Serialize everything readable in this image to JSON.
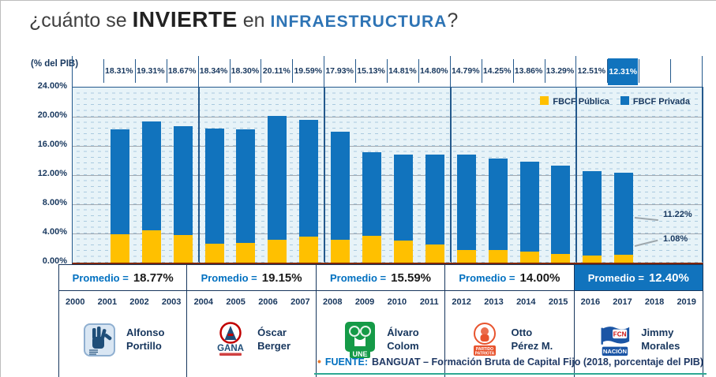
{
  "title": {
    "part1": "¿cuánto se ",
    "invierte": "INVIERTE",
    "part2": " en ",
    "infraestructura": "INFRAESTRUCTURA",
    "qmark": "?"
  },
  "axis": {
    "unit": "(% del PIB)",
    "ticks": [
      "24.00%",
      "20.00%",
      "16.00%",
      "12.00%",
      "8.00%",
      "4.00%",
      "0.00%"
    ]
  },
  "legend": {
    "items": [
      {
        "label": "FBCF Pública",
        "color": "#FFC000"
      },
      {
        "label": "FBCF Privada",
        "color": "#1173BD"
      }
    ]
  },
  "chart_data": {
    "type": "bar",
    "stacked": true,
    "title": "¿cuánto se INVIERTE en INFRAESTRUCTURA?",
    "ylabel": "(% del PIB)",
    "ylim": [
      0,
      24
    ],
    "grid": true,
    "legend_position": "top-right",
    "categories": [
      "2000",
      "2001",
      "2002",
      "2003",
      "2004",
      "2005",
      "2006",
      "2007",
      "2008",
      "2009",
      "2010",
      "2011",
      "2012",
      "2013",
      "2014",
      "2015",
      "2016",
      "2017",
      "2018",
      "2019"
    ],
    "series": [
      {
        "name": "FBCF Pública",
        "color": "#FFC000",
        "values": [
          null,
          3.85,
          4.4,
          3.75,
          2.55,
          2.7,
          3.1,
          3.6,
          3.17,
          3.7,
          3.05,
          2.45,
          1.7,
          1.7,
          1.55,
          1.2,
          0.95,
          1.08,
          null,
          null
        ]
      },
      {
        "name": "FBCF Privada",
        "color": "#1173BD",
        "values": [
          null,
          14.46,
          14.91,
          14.92,
          15.79,
          15.6,
          17.01,
          15.99,
          14.76,
          11.43,
          11.76,
          12.35,
          13.09,
          12.55,
          12.31,
          12.09,
          11.56,
          11.22,
          null,
          null
        ]
      }
    ],
    "total_labels": [
      "",
      "18.31%",
      "19.31%",
      "18.67%",
      "18.34%",
      "18.30%",
      "20.11%",
      "19.59%",
      "17.93%",
      "15.13%",
      "14.81%",
      "14.80%",
      "14.79%",
      "14.25%",
      "13.86%",
      "13.29%",
      "12.51%",
      "12.31%",
      "",
      ""
    ],
    "highlight_index": 17,
    "annotations": [
      {
        "text": "11.22%",
        "target": "2017 FBCF Privada"
      },
      {
        "text": "1.08%",
        "target": "2017 FBCF Pública"
      }
    ]
  },
  "periods": [
    {
      "label": "Promedio = ",
      "value": "18.77%",
      "years": [
        "2000",
        "2001",
        "2002",
        "2003"
      ],
      "president_line1": "Alfonso",
      "president_line2": "Portillo",
      "party": "",
      "logo": "portillo-party-logo",
      "highlight": false
    },
    {
      "label": "Promedio = ",
      "value": "19.15%",
      "years": [
        "2004",
        "2005",
        "2006",
        "2007"
      ],
      "president_line1": "Óscar",
      "president_line2": "Berger",
      "party": "GANA",
      "logo": "gana-party-logo",
      "highlight": false
    },
    {
      "label": "Promedio = ",
      "value": "15.59%",
      "years": [
        "2008",
        "2009",
        "2010",
        "2011"
      ],
      "president_line1": "Álvaro",
      "president_line2": "Colom",
      "party": "UNE",
      "logo": "une-party-logo",
      "highlight": false
    },
    {
      "label": "Promedio = ",
      "value": "14.00%",
      "years": [
        "2012",
        "2013",
        "2014",
        "2015"
      ],
      "president_line1": "Otto",
      "president_line2": "Pérez M.",
      "party": "PARTIDO PATRIOTA",
      "logo": "partido-patriota-logo",
      "highlight": false
    },
    {
      "label": "Promedio = ",
      "value": "12.40%",
      "years": [
        "2016",
        "2017",
        "2018",
        "2019"
      ],
      "president_line1": "Jimmy",
      "president_line2": "Morales",
      "party": "FCN NACIÓN",
      "logo": "fcn-nacion-logo",
      "highlight": true
    }
  ],
  "footer": {
    "bullet": "•",
    "label": "FUENTE:",
    "text": "BANGUAT – Formación Bruta de Capital Fijo (2018, porcentaje del PIB)"
  },
  "colors": {
    "bar_publica": "#FFC000",
    "bar_privada": "#1173BD",
    "highlight_box": "#1173BD",
    "plot_bg": "#E7F3F8",
    "zero_axis": "#7F2704",
    "navy_text": "#17375E",
    "blue_text": "#0070C0",
    "teal_rule": "#2EA893",
    "orange_bullet": "#E8762C"
  }
}
